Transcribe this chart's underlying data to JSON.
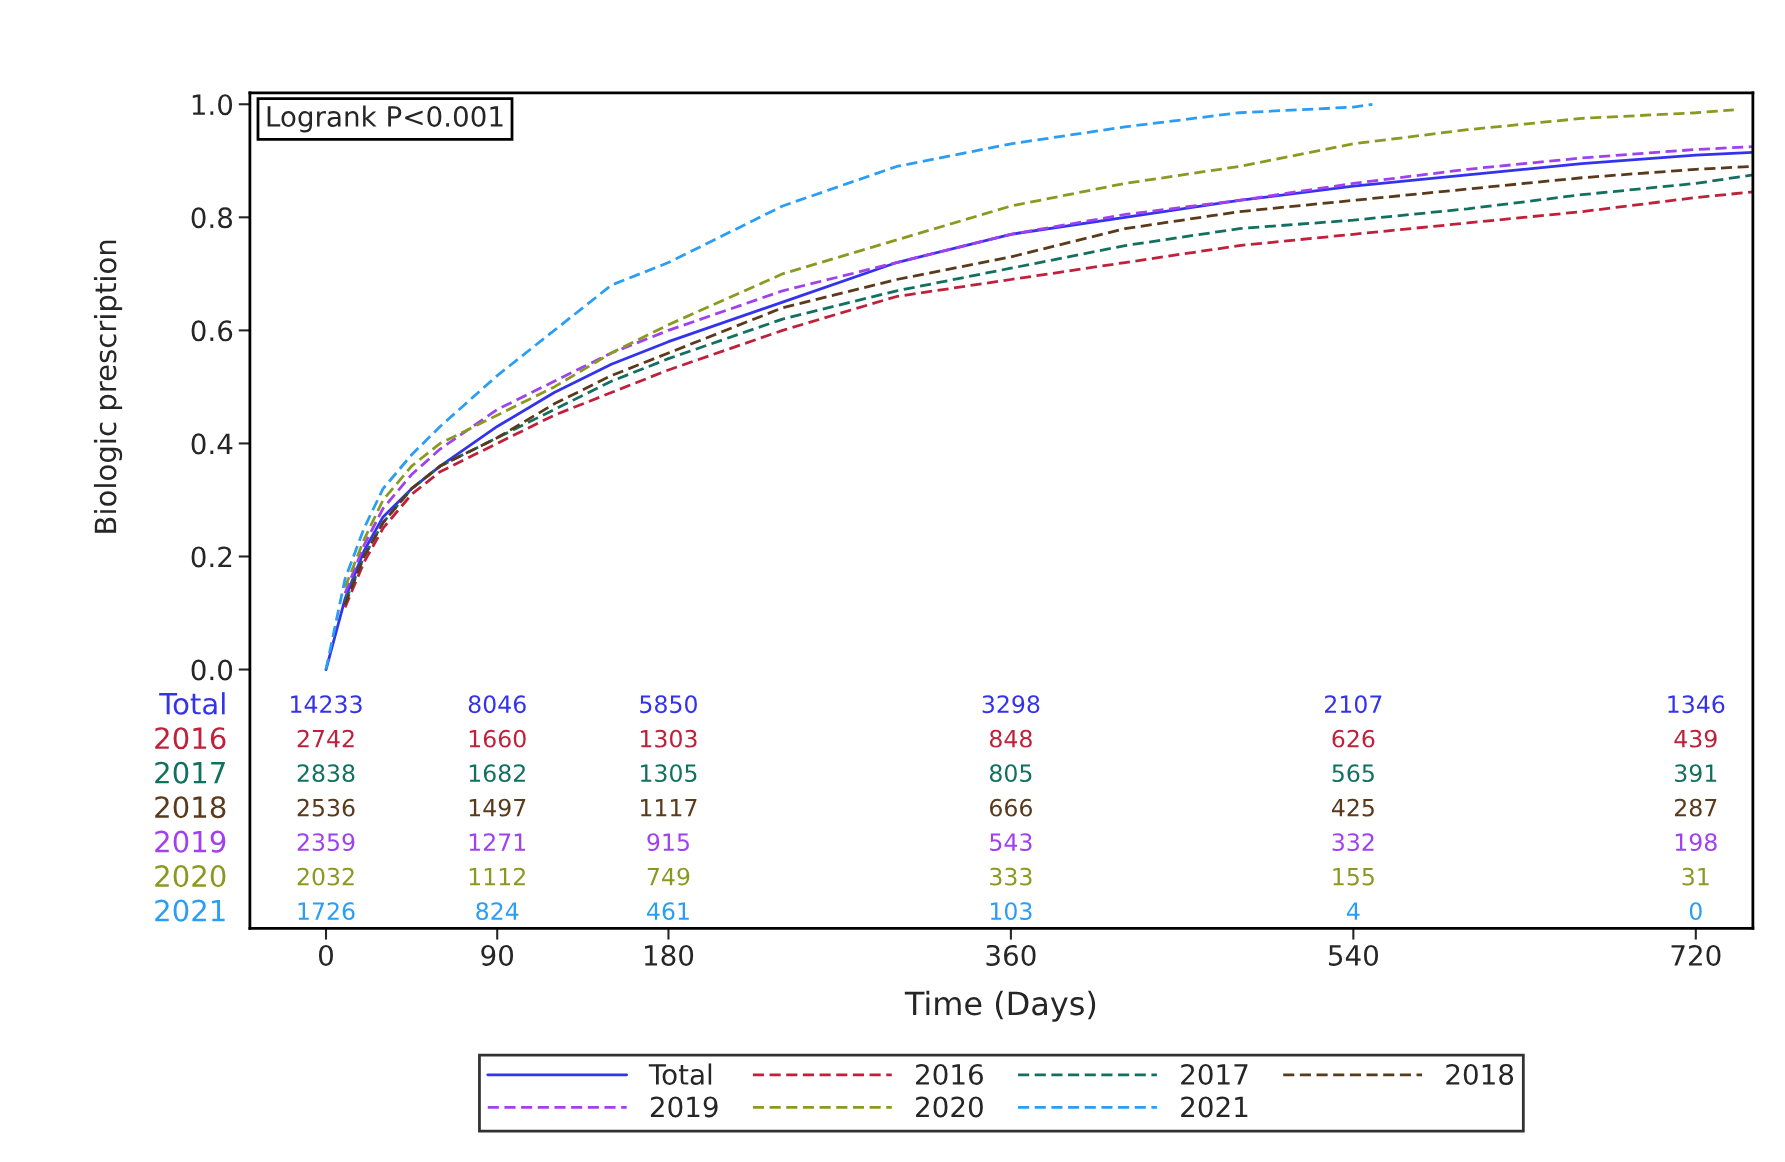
{
  "chart_data": {
    "type": "line",
    "xlabel": "Time (Days)",
    "ylabel": "Biologic prescription",
    "xlim": [
      -40,
      750
    ],
    "ylim": [
      -0.458,
      1.02
    ],
    "xticks": [
      0,
      90,
      180,
      360,
      540,
      720
    ],
    "yticks": [
      {
        "value": 0,
        "label": "0.0"
      },
      {
        "value": 0.2,
        "label": "0.2"
      },
      {
        "value": 0.4,
        "label": "0.4"
      },
      {
        "value": 0.6,
        "label": "0.6"
      },
      {
        "value": 0.8,
        "label": "0.8"
      },
      {
        "value": 1,
        "label": "1.0"
      }
    ],
    "grid": false,
    "legend": "bottom",
    "marker": "none",
    "series": [
      {
        "name": "Total",
        "color": "#3333ee",
        "line_style": "solid",
        "x": [
          0,
          10,
          20,
          30,
          45,
          60,
          90,
          120,
          150,
          180,
          240,
          300,
          360,
          420,
          480,
          540,
          600,
          660,
          720,
          750
        ],
        "values": [
          0,
          0.125,
          0.21,
          0.27,
          0.32,
          0.36,
          0.43,
          0.49,
          0.54,
          0.58,
          0.65,
          0.72,
          0.77,
          0.8,
          0.83,
          0.855,
          0.875,
          0.895,
          0.91,
          0.915
        ]
      },
      {
        "name": "2016",
        "color": "#c0203a",
        "line_style": "dashed",
        "x": [
          10,
          20,
          30,
          45,
          60,
          90,
          120,
          150,
          180,
          240,
          300,
          360,
          420,
          480,
          540,
          600,
          660,
          720,
          750
        ],
        "values": [
          0.11,
          0.19,
          0.25,
          0.31,
          0.35,
          0.4,
          0.45,
          0.49,
          0.53,
          0.6,
          0.66,
          0.69,
          0.72,
          0.75,
          0.77,
          0.79,
          0.81,
          0.835,
          0.845
        ]
      },
      {
        "name": "2017",
        "color": "#117060",
        "line_style": "dashed",
        "x": [
          10,
          20,
          30,
          45,
          60,
          90,
          120,
          150,
          180,
          240,
          300,
          360,
          420,
          480,
          540,
          600,
          660,
          720,
          750
        ],
        "values": [
          0.12,
          0.2,
          0.26,
          0.32,
          0.36,
          0.41,
          0.46,
          0.51,
          0.55,
          0.62,
          0.67,
          0.71,
          0.75,
          0.78,
          0.795,
          0.815,
          0.84,
          0.86,
          0.875
        ]
      },
      {
        "name": "2018",
        "color": "#5a3a1a",
        "line_style": "dashed",
        "x": [
          10,
          20,
          30,
          45,
          60,
          90,
          120,
          150,
          180,
          240,
          300,
          360,
          420,
          480,
          540,
          600,
          660,
          720,
          750
        ],
        "values": [
          0.115,
          0.2,
          0.26,
          0.32,
          0.36,
          0.41,
          0.47,
          0.52,
          0.56,
          0.64,
          0.69,
          0.73,
          0.78,
          0.81,
          0.83,
          0.85,
          0.87,
          0.885,
          0.89
        ]
      },
      {
        "name": "2019",
        "color": "#a040f0",
        "line_style": "dashed",
        "x": [
          10,
          20,
          30,
          45,
          60,
          90,
          120,
          150,
          180,
          240,
          300,
          360,
          420,
          480,
          540,
          600,
          660,
          720,
          750
        ],
        "values": [
          0.135,
          0.22,
          0.285,
          0.345,
          0.39,
          0.46,
          0.51,
          0.56,
          0.6,
          0.67,
          0.72,
          0.77,
          0.805,
          0.83,
          0.86,
          0.885,
          0.905,
          0.92,
          0.925
        ]
      },
      {
        "name": "2020",
        "color": "#8a9a20",
        "line_style": "dashed",
        "x": [
          10,
          20,
          30,
          45,
          60,
          90,
          120,
          150,
          180,
          240,
          300,
          360,
          420,
          480,
          540,
          600,
          660,
          720,
          740
        ],
        "values": [
          0.145,
          0.23,
          0.3,
          0.36,
          0.4,
          0.45,
          0.5,
          0.56,
          0.61,
          0.7,
          0.76,
          0.82,
          0.86,
          0.89,
          0.93,
          0.955,
          0.975,
          0.985,
          0.99
        ]
      },
      {
        "name": "2021",
        "color": "#2a9df4",
        "line_style": "dashed",
        "x": [
          0,
          10,
          20,
          30,
          45,
          60,
          90,
          120,
          150,
          180,
          240,
          300,
          360,
          420,
          480,
          540,
          550
        ],
        "values": [
          0,
          0.16,
          0.25,
          0.32,
          0.38,
          0.43,
          0.52,
          0.6,
          0.68,
          0.72,
          0.82,
          0.89,
          0.93,
          0.96,
          0.985,
          0.995,
          1.0
        ]
      }
    ],
    "annotations": [
      "Logrank P<0.001",
      "14233",
      "8046",
      "5850",
      "3298",
      "2107",
      "1346",
      "2742",
      "1660",
      "1303",
      "848",
      "626",
      "439",
      "2838",
      "1682",
      "1305",
      "805",
      "565",
      "391",
      "2536",
      "1497",
      "1117",
      "666",
      "425",
      "287",
      "2359",
      "1271",
      "915",
      "543",
      "332",
      "198",
      "2032",
      "1112",
      "749",
      "333",
      "155",
      "31",
      "1726",
      "824",
      "461",
      "103",
      "4",
      "0"
    ]
  }
}
